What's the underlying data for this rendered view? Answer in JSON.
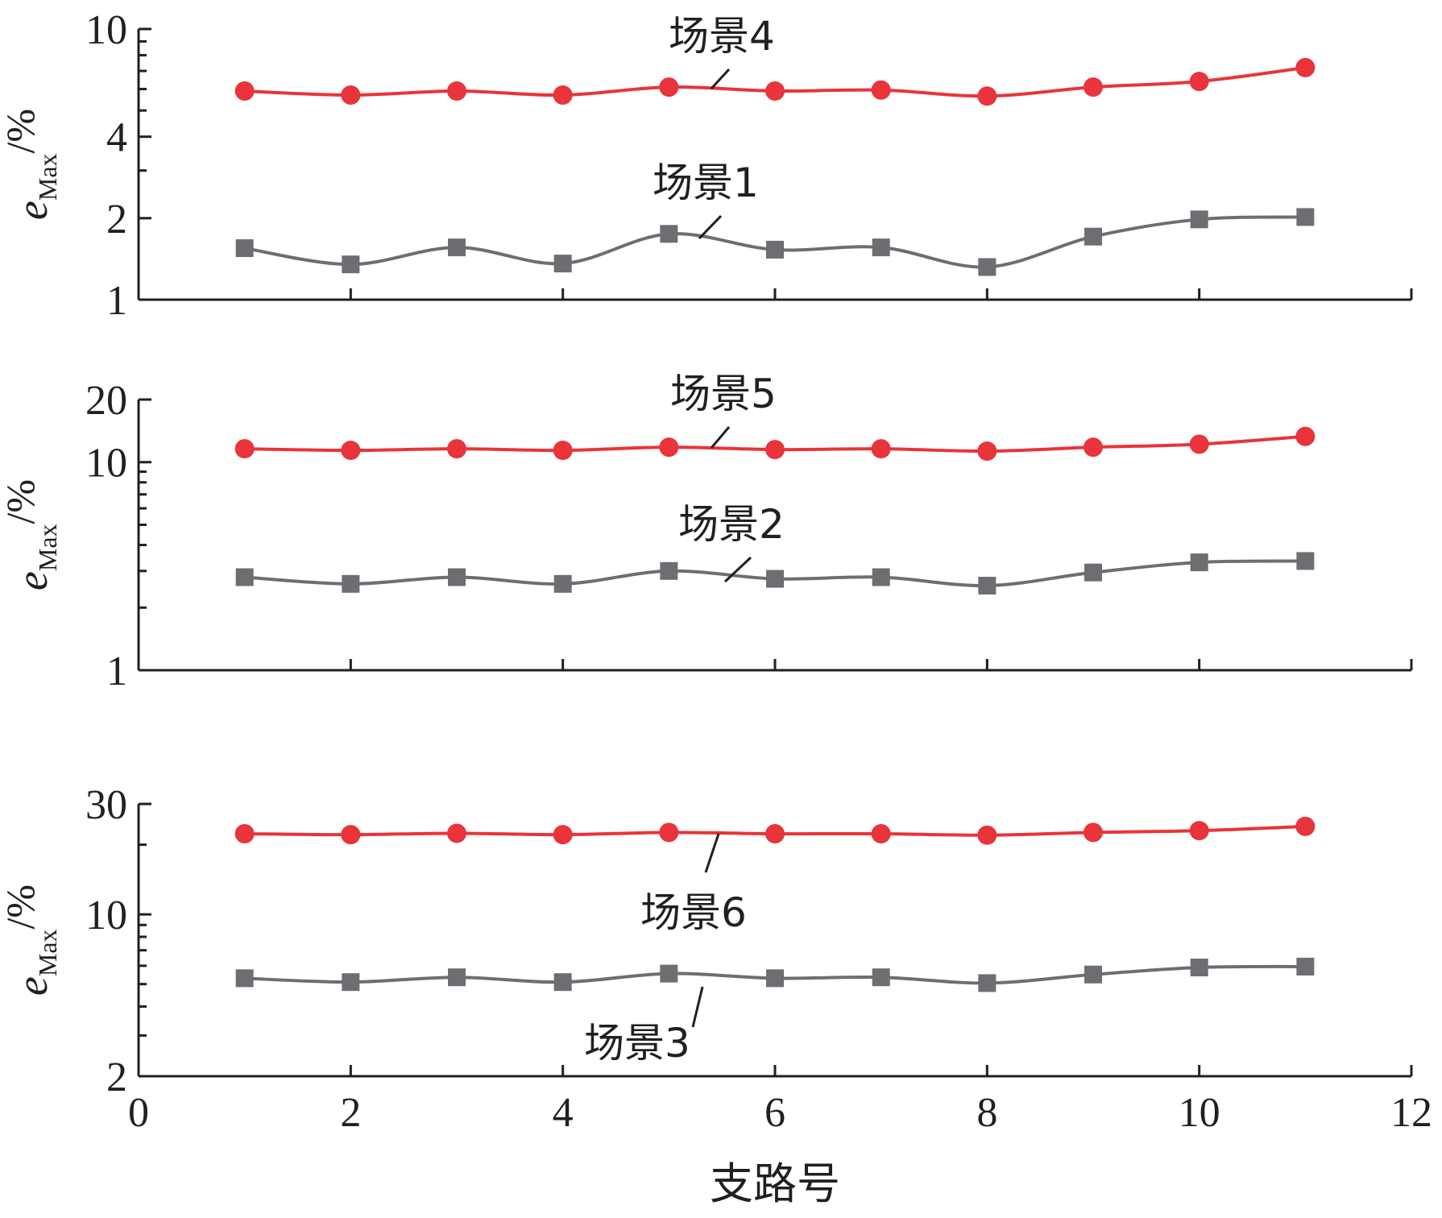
{
  "chart_data": [
    {
      "type": "line",
      "yscale": "log",
      "ylim": [
        1,
        10
      ],
      "yticks": [
        1,
        2,
        4,
        10
      ],
      "yticklabels": [
        "1",
        "2",
        "4",
        "10"
      ],
      "ylabel_main": "e",
      "ylabel_sub": "Max",
      "ylabel_unit": "/%",
      "x": [
        1,
        2,
        3,
        4,
        5,
        6,
        7,
        8,
        9,
        10,
        11
      ],
      "series": [
        {
          "name": "场景4",
          "marker": "circle",
          "color": "#e8343a",
          "values": [
            5.9,
            5.7,
            5.9,
            5.7,
            6.1,
            5.9,
            5.95,
            5.65,
            6.1,
            6.4,
            7.2
          ]
        },
        {
          "name": "场景1",
          "marker": "square",
          "color": "#6d6e71",
          "values": [
            1.55,
            1.35,
            1.56,
            1.36,
            1.75,
            1.53,
            1.56,
            1.32,
            1.71,
            1.98,
            2.02
          ]
        }
      ],
      "annotations": [
        {
          "text": "场景4",
          "series": 0
        },
        {
          "text": "场景1",
          "series": 1
        }
      ]
    },
    {
      "type": "line",
      "yscale": "log",
      "ylim": [
        1,
        20
      ],
      "yticks": [
        1,
        10,
        20
      ],
      "yticklabels": [
        "1",
        "10",
        "20"
      ],
      "ylabel_main": "e",
      "ylabel_sub": "Max",
      "ylabel_unit": "/%",
      "x": [
        1,
        2,
        3,
        4,
        5,
        6,
        7,
        8,
        9,
        10,
        11
      ],
      "series": [
        {
          "name": "场景5",
          "marker": "circle",
          "color": "#e8343a",
          "values": [
            11.6,
            11.4,
            11.6,
            11.4,
            11.8,
            11.5,
            11.6,
            11.3,
            11.8,
            12.2,
            13.3
          ]
        },
        {
          "name": "场景2",
          "marker": "square",
          "color": "#6d6e71",
          "values": [
            2.8,
            2.6,
            2.8,
            2.6,
            3.0,
            2.75,
            2.8,
            2.55,
            2.95,
            3.3,
            3.35
          ]
        }
      ],
      "annotations": [
        {
          "text": "场景5",
          "series": 0
        },
        {
          "text": "场景2",
          "series": 1
        }
      ]
    },
    {
      "type": "line",
      "yscale": "log",
      "ylim": [
        2,
        30
      ],
      "yticks": [
        2,
        10,
        30
      ],
      "yticklabels": [
        "2",
        "10",
        "30"
      ],
      "ylabel_main": "e",
      "ylabel_sub": "Max",
      "ylabel_unit": "/%",
      "xlabel": "支路号",
      "xlim": [
        0,
        12
      ],
      "xticks": [
        0,
        2,
        4,
        6,
        8,
        10,
        12
      ],
      "xticklabels": [
        "0",
        "2",
        "4",
        "6",
        "8",
        "10",
        "12"
      ],
      "x": [
        1,
        2,
        3,
        4,
        5,
        6,
        7,
        8,
        9,
        10,
        11
      ],
      "series": [
        {
          "name": "场景6",
          "marker": "circle",
          "color": "#e8343a",
          "values": [
            22.3,
            22.1,
            22.4,
            22.1,
            22.6,
            22.3,
            22.3,
            22.0,
            22.6,
            23.0,
            24.0
          ]
        },
        {
          "name": "场景3",
          "marker": "square",
          "color": "#6d6e71",
          "values": [
            5.3,
            5.1,
            5.35,
            5.1,
            5.55,
            5.3,
            5.35,
            5.05,
            5.5,
            5.9,
            5.95
          ]
        }
      ],
      "annotations": [
        {
          "text": "场景6",
          "series": 0
        },
        {
          "text": "场景3",
          "series": 1
        }
      ]
    }
  ]
}
